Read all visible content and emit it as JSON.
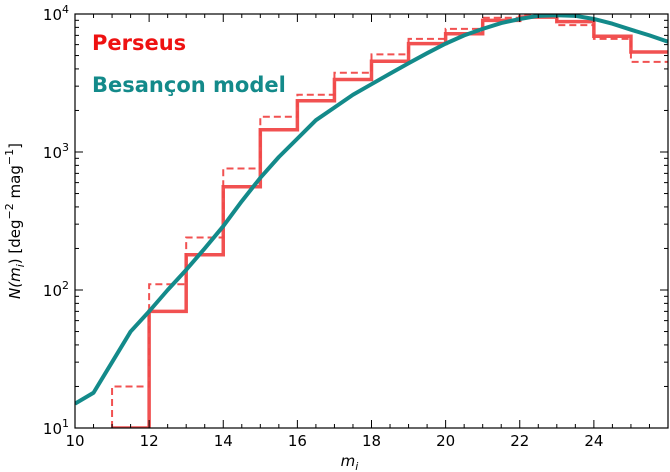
{
  "chart_data": {
    "type": "line",
    "x_axis": {
      "label_main": "m",
      "label_sub": "i",
      "range": [
        10,
        26
      ],
      "tick_values": [
        10,
        12,
        14,
        16,
        18,
        20,
        22,
        24
      ]
    },
    "y_axis": {
      "scale": "log",
      "range": [
        10,
        10000
      ],
      "label_pre": "N(m",
      "label_sub": "i",
      "label_post": ") [deg",
      "label_sup1": "−2",
      "label_mid": " mag",
      "label_sup2": "−1",
      "label_end": "]",
      "ticks": [
        {
          "value": 10,
          "base": "10",
          "exp": "1"
        },
        {
          "value": 100,
          "base": "10",
          "exp": "2"
        },
        {
          "value": 1000,
          "base": "10",
          "exp": "3"
        },
        {
          "value": 10000,
          "base": "10",
          "exp": "4"
        }
      ]
    },
    "legend": {
      "placement": "top-left"
    },
    "colors": {
      "perseus": "#f04848",
      "perseus_legend": "#ee1111",
      "besancon": "#138a8a"
    },
    "series": [
      {
        "name": "Perseus",
        "style": "step-solid",
        "bins": [
          {
            "x0": 11,
            "x1": 12,
            "y": 10
          },
          {
            "x0": 12,
            "x1": 13,
            "y": 70
          },
          {
            "x0": 13,
            "x1": 14,
            "y": 180
          },
          {
            "x0": 14,
            "x1": 15,
            "y": 560
          },
          {
            "x0": 15,
            "x1": 16,
            "y": 1450
          },
          {
            "x0": 16,
            "x1": 17,
            "y": 2350
          },
          {
            "x0": 17,
            "x1": 18,
            "y": 3350
          },
          {
            "x0": 18,
            "x1": 19,
            "y": 4550
          },
          {
            "x0": 19,
            "x1": 20,
            "y": 6100
          },
          {
            "x0": 20,
            "x1": 21,
            "y": 7200
          },
          {
            "x0": 21,
            "x1": 22,
            "y": 9000
          },
          {
            "x0": 22,
            "x1": 23,
            "y": 9500
          },
          {
            "x0": 23,
            "x1": 24,
            "y": 8800
          },
          {
            "x0": 24,
            "x1": 25,
            "y": 6900
          },
          {
            "x0": 25,
            "x1": 26,
            "y": 5300
          }
        ]
      },
      {
        "name": "",
        "style": "step-dashed",
        "bins": [
          {
            "x0": 11,
            "x1": 12,
            "y": 20
          },
          {
            "x0": 12,
            "x1": 13,
            "y": 110
          },
          {
            "x0": 13,
            "x1": 14,
            "y": 240
          },
          {
            "x0": 14,
            "x1": 15,
            "y": 760
          },
          {
            "x0": 15,
            "x1": 16,
            "y": 1800
          },
          {
            "x0": 16,
            "x1": 17,
            "y": 2600
          },
          {
            "x0": 17,
            "x1": 18,
            "y": 3750
          },
          {
            "x0": 18,
            "x1": 19,
            "y": 5100
          },
          {
            "x0": 19,
            "x1": 20,
            "y": 6600
          },
          {
            "x0": 20,
            "x1": 21,
            "y": 7800
          },
          {
            "x0": 21,
            "x1": 22,
            "y": 9400
          },
          {
            "x0": 22,
            "x1": 23,
            "y": 9800
          },
          {
            "x0": 23,
            "x1": 24,
            "y": 8300
          },
          {
            "x0": 24,
            "x1": 25,
            "y": 6600
          },
          {
            "x0": 25,
            "x1": 26,
            "y": 4500
          }
        ]
      },
      {
        "name": "Besançon model",
        "style": "line",
        "points": [
          [
            10,
            15
          ],
          [
            10.5,
            18
          ],
          [
            11,
            30
          ],
          [
            11.5,
            50
          ],
          [
            12,
            70
          ],
          [
            12.5,
            100
          ],
          [
            13,
            140
          ],
          [
            13.5,
            200
          ],
          [
            14,
            290
          ],
          [
            14.5,
            440
          ],
          [
            15,
            650
          ],
          [
            15.5,
            920
          ],
          [
            16,
            1250
          ],
          [
            16.5,
            1700
          ],
          [
            17,
            2100
          ],
          [
            17.5,
            2600
          ],
          [
            18,
            3100
          ],
          [
            18.5,
            3700
          ],
          [
            19,
            4400
          ],
          [
            19.5,
            5200
          ],
          [
            20,
            6100
          ],
          [
            20.5,
            7000
          ],
          [
            21,
            7800
          ],
          [
            21.5,
            8600
          ],
          [
            22,
            9200
          ],
          [
            22.5,
            9700
          ],
          [
            23,
            9800
          ],
          [
            23.5,
            9700
          ],
          [
            24,
            9200
          ],
          [
            24.5,
            8500
          ],
          [
            25,
            7700
          ],
          [
            25.5,
            7000
          ],
          [
            26,
            6300
          ]
        ]
      }
    ]
  }
}
